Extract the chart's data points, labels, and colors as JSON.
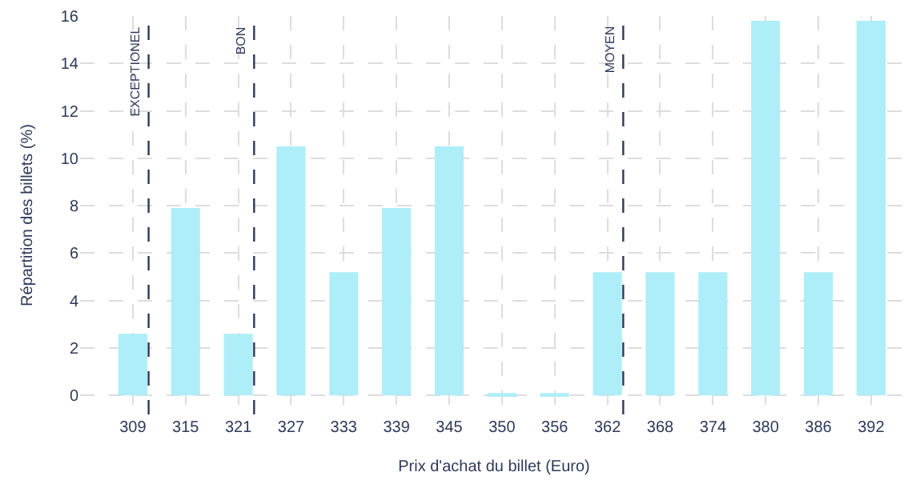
{
  "chart_data": {
    "type": "bar",
    "xlabel": "Prix d'achat du billet (Euro)",
    "ylabel": "Répartition des billets (%)",
    "categories": [
      "309",
      "315",
      "321",
      "327",
      "333",
      "339",
      "345",
      "350",
      "356",
      "362",
      "368",
      "374",
      "380",
      "386",
      "392"
    ],
    "values": [
      2.6,
      7.9,
      2.6,
      10.5,
      5.2,
      7.9,
      10.5,
      0.1,
      0.1,
      5.2,
      5.2,
      5.2,
      15.8,
      5.2,
      15.8
    ],
    "color": "#aeeef8",
    "ylim": [
      -0.8,
      16
    ],
    "yticks": [
      0,
      2,
      4,
      6,
      8,
      10,
      12,
      14,
      16
    ],
    "grid": true,
    "ref_lines": [
      {
        "axis": "x",
        "value": "309",
        "label": "EXCEPTIONEL",
        "color": "#2e3a59",
        "line_style": "dashed"
      },
      {
        "axis": "x",
        "value": "321",
        "label": "BON",
        "color": "#2e3a59",
        "line_style": "dashed"
      },
      {
        "axis": "x",
        "value": "362",
        "label": "MOYEN",
        "color": "#2e3a59",
        "line_style": "dashed"
      }
    ]
  }
}
